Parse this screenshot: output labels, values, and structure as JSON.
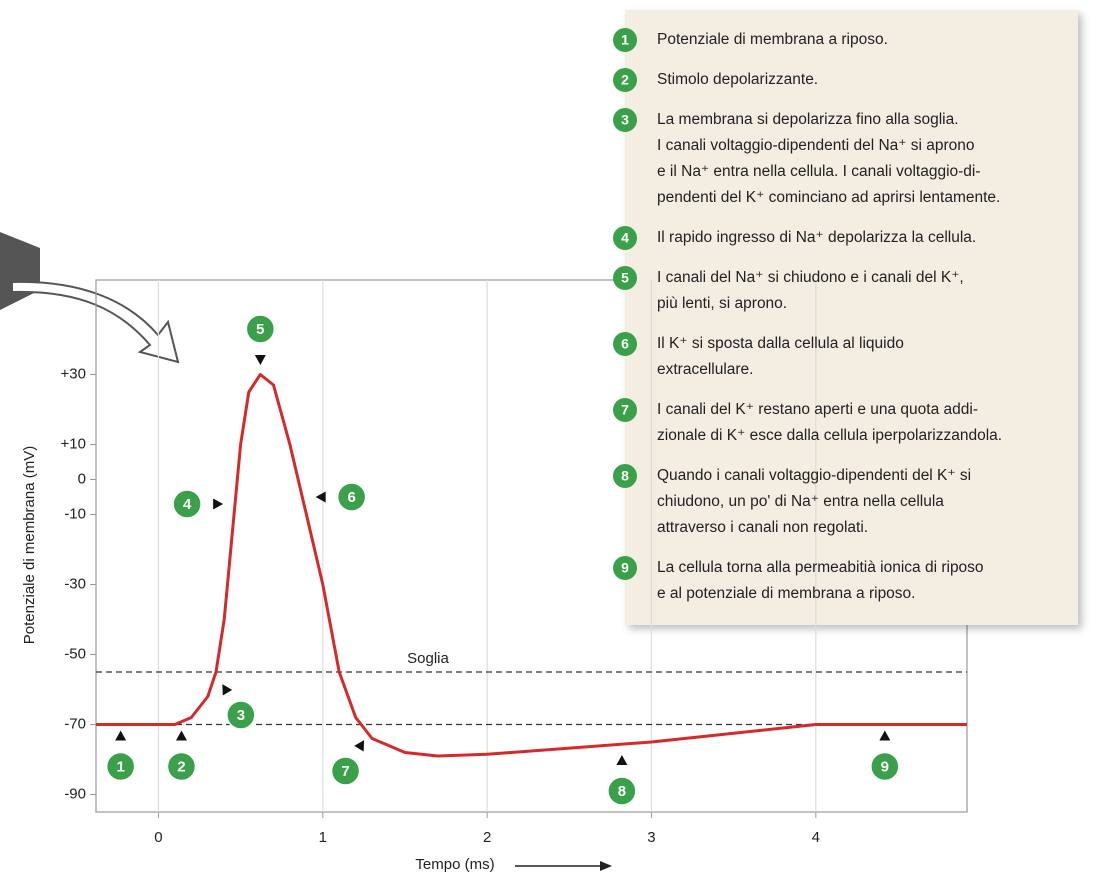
{
  "chart_data": {
    "type": "line",
    "xlabel": "Tempo (ms)",
    "ylabel": "Potenziale di membrana (mV)",
    "x": [
      -0.38,
      0.1,
      0.2,
      0.3,
      0.35,
      0.4,
      0.45,
      0.5,
      0.55,
      0.62,
      0.7,
      0.8,
      0.9,
      1.0,
      1.1,
      1.2,
      1.3,
      1.5,
      1.7,
      2.0,
      3.0,
      4.0,
      4.92
    ],
    "series": [
      {
        "color": "#d42a2a",
        "values": [
          -70,
          -70,
          -68,
          -62,
          -55,
          -40,
          -15,
          10,
          25,
          30,
          27,
          10,
          -10,
          -30,
          -55,
          -68,
          -74,
          -78,
          -79,
          -78.5,
          -75,
          -70,
          -70
        ]
      }
    ],
    "xlim": [
      -0.38,
      4.92
    ],
    "ylim": [
      -95,
      57
    ],
    "xticks": [
      0,
      1,
      2,
      3,
      4
    ],
    "yticks": [
      {
        "value": 30,
        "label": "+30"
      },
      {
        "value": 10,
        "label": "+10"
      },
      0,
      -10,
      -30,
      -50,
      -70,
      -90
    ],
    "grid": "x",
    "threshold": {
      "label": "Soglia",
      "value": -55
    },
    "rest_line": -70,
    "markers": [
      {
        "x": -0.23,
        "y": -70
      },
      {
        "x": 0.14,
        "y": -70
      },
      {
        "x": 0.37,
        "y": -57
      },
      {
        "x": 0.43,
        "y": -7
      },
      {
        "x": 0.62,
        "y": 31
      },
      {
        "x": 0.92,
        "y": -5
      },
      {
        "x": 1.27,
        "y": -73
      },
      {
        "x": 2.82,
        "y": -77
      },
      {
        "x": 4.42,
        "y": -70
      }
    ]
  },
  "notes": [
    {
      "number": "1",
      "lines": [
        "Potenziale di membrana a riposo."
      ]
    },
    {
      "number": "2",
      "lines": [
        "Stimolo depolarizzante."
      ]
    },
    {
      "number": "3",
      "lines": [
        "La membrana si depolarizza fino alla soglia.",
        "I canali voltaggio-dipendenti del Na⁺ si aprono",
        "e il Na⁺ entra nella cellula. I canali voltaggio-di-",
        "pendenti del K⁺ cominciano ad aprirsi lentamente."
      ]
    },
    {
      "number": "4",
      "lines": [
        "Il rapido ingresso di Na⁺ depolarizza la cellula."
      ]
    },
    {
      "number": "5",
      "lines": [
        "I canali del Na⁺ si chiudono e i canali del K⁺,",
        "più lenti, si aprono."
      ]
    },
    {
      "number": "6",
      "lines": [
        "Il K⁺ si sposta dalla cellula al liquido",
        "extracellulare."
      ]
    },
    {
      "number": "7",
      "lines": [
        "I canali del K⁺ restano aperti e una quota addi-",
        "zionale di K⁺ esce dalla cellula iperpolarizzandola."
      ]
    },
    {
      "number": "8",
      "lines": [
        "Quando i canali voltaggio-dipendenti del K⁺ si",
        "chiudono, un po' di Na⁺ entra nella cellula",
        "attraverso i canali non regolati."
      ]
    },
    {
      "number": "9",
      "lines": [
        "La cellula torna alla permeabitià ionica di riposo",
        "e al potenziale di membrana a riposo."
      ]
    }
  ]
}
